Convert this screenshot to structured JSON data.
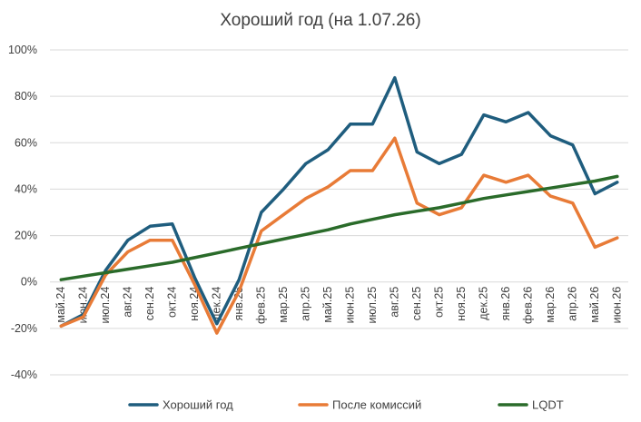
{
  "chart_data": {
    "type": "line",
    "title": "Хороший год (на 1.07.26)",
    "xlabel": "",
    "ylabel": "",
    "ylim": [
      -40,
      100
    ],
    "y_ticks": [
      -40,
      -20,
      0,
      20,
      40,
      60,
      80,
      100
    ],
    "y_tick_labels": [
      "-40%",
      "-20%",
      "0%",
      "20%",
      "40%",
      "60%",
      "80%",
      "100%"
    ],
    "grid": true,
    "legend_position": "bottom",
    "categories": [
      "май.24",
      "июн.24",
      "июл.24",
      "авг.24",
      "сен.24",
      "окт.24",
      "ноя.24",
      "дек.24",
      "янв.25",
      "фев.25",
      "мар.25",
      "апр.25",
      "май.25",
      "июн.25",
      "июл.25",
      "авг.25",
      "сен.25",
      "окт.25",
      "ноя.25",
      "дек.25",
      "янв.26",
      "фев.26",
      "мар.26",
      "апр.26",
      "май.26",
      "июн.26"
    ],
    "series": [
      {
        "name": "Хороший год",
        "color": "#1f5d7e",
        "values": [
          -19,
          -14,
          5,
          18,
          24,
          25,
          2,
          -18,
          1,
          30,
          40,
          51,
          57,
          68,
          68,
          88,
          56,
          51,
          55,
          72,
          69,
          73,
          63,
          59,
          38,
          43
        ]
      },
      {
        "name": "После комиссий",
        "color": "#e87b37",
        "values": [
          -19,
          -15,
          3,
          13,
          18,
          18,
          -1,
          -22,
          -4,
          22,
          29,
          36,
          41,
          48,
          48,
          62,
          34,
          29,
          32,
          46,
          43,
          46,
          37,
          34,
          15,
          19
        ]
      },
      {
        "name": "LQDT",
        "color": "#2a6b2a",
        "values": [
          1,
          2.5,
          4,
          5.5,
          7,
          8.5,
          10.5,
          12.5,
          14.5,
          16.5,
          18.5,
          20.5,
          22.5,
          25,
          27,
          29,
          30.5,
          32,
          34,
          36,
          37.5,
          39,
          40.5,
          42,
          43.5,
          45.5
        ]
      }
    ]
  }
}
